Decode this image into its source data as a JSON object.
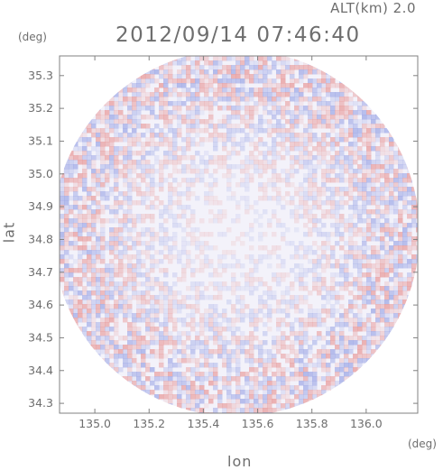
{
  "header": {
    "altitude": "ALT(km) 2.0",
    "timestamp": "2012/09/14 07:46:40"
  },
  "chart_data": {
    "type": "heatmap",
    "xlabel": "lon",
    "ylabel": "lat",
    "xunit": "(deg)",
    "yunit": "(deg)",
    "xlim": [
      134.87,
      136.19
    ],
    "ylim": [
      34.27,
      35.36
    ],
    "xticks": [
      "135.0",
      "135.2",
      "135.4",
      "135.6",
      "135.8",
      "136.0"
    ],
    "yticks": [
      "34.3",
      "34.4",
      "34.5",
      "34.6",
      "34.7",
      "34.8",
      "34.9",
      "35.0",
      "35.1",
      "35.2",
      "35.3"
    ],
    "center": [
      135.52,
      34.82
    ],
    "coverage": "circular radar scan",
    "colors": {
      "positive": "#e89a9a",
      "negative": "#9ea8e6",
      "neutral": "#f3f2fa",
      "frame": "#808080"
    }
  }
}
